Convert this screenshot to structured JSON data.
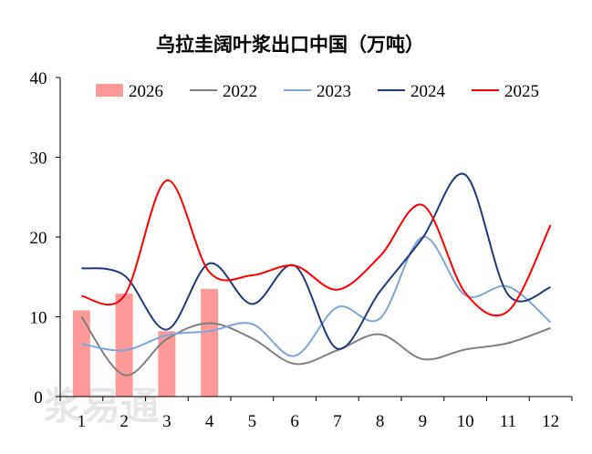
{
  "chart_data": {
    "type": "line",
    "title": "乌拉圭阔叶浆出口中国（万吨）",
    "categories": [
      "1",
      "2",
      "3",
      "4",
      "5",
      "6",
      "7",
      "8",
      "9",
      "10",
      "11",
      "12"
    ],
    "ylim": [
      0,
      40
    ],
    "yticks": [
      0,
      10,
      20,
      30,
      40
    ],
    "grid": false,
    "legend_position": "top",
    "bar_series": {
      "name": "2026",
      "color": "#ff9999",
      "values": [
        10.8,
        12.9,
        8.2,
        13.5
      ]
    },
    "series": [
      {
        "name": "2022",
        "color": "#808080",
        "values": [
          10.0,
          2.7,
          7.2,
          9.2,
          7.3,
          4.1,
          5.8,
          7.8,
          4.7,
          5.9,
          6.7,
          8.6
        ]
      },
      {
        "name": "2023",
        "color": "#7da7d9",
        "values": [
          6.6,
          5.8,
          7.7,
          8.2,
          9.1,
          5.1,
          11.2,
          9.8,
          20.0,
          12.7,
          13.8,
          9.3
        ]
      },
      {
        "name": "2024",
        "color": "#1f3a7a",
        "values": [
          16.1,
          15.2,
          8.4,
          16.7,
          11.6,
          16.4,
          6.0,
          13.2,
          19.9,
          27.8,
          12.8,
          13.7
        ]
      },
      {
        "name": "2025",
        "color": "#ff0000",
        "values": [
          12.6,
          12.6,
          27.1,
          15.6,
          15.2,
          16.4,
          13.4,
          17.6,
          24.0,
          13.0,
          10.7,
          21.5
        ]
      }
    ]
  },
  "watermark": "浆易通"
}
